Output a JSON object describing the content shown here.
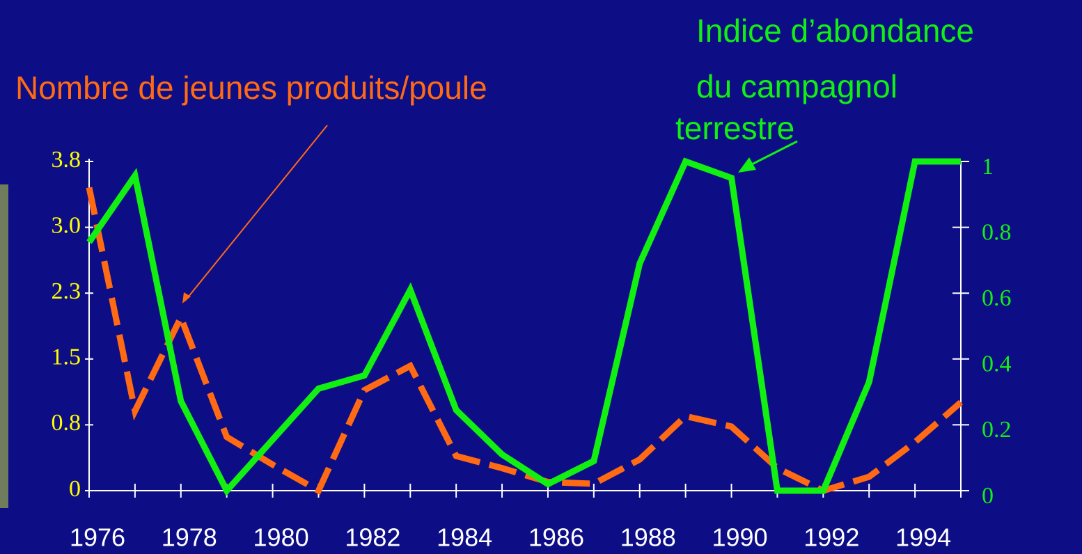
{
  "chart_data": {
    "type": "line",
    "annotations": [
      "Nombre de jeunes produits/poule",
      "Indice d’abondance",
      "du campagnol",
      "terrestre"
    ],
    "categories": [
      "1976",
      null,
      "1978",
      null,
      "1980",
      null,
      "1982",
      null,
      "1984",
      null,
      "1986",
      null,
      "1988",
      null,
      "1990",
      null,
      "1992",
      null,
      "1994",
      null
    ],
    "series": [
      {
        "color": "#ff6a13",
        "dashed": true,
        "axis": "y",
        "values": [
          3.5,
          0.92,
          2.0,
          0.62,
          0.3,
          0,
          1.16,
          1.44,
          0.4,
          0.26,
          0.1,
          0.08,
          0.36,
          0.86,
          0.74,
          0.26,
          0,
          0.16,
          0.56,
          1.02
        ]
      },
      {
        "color": "#12f012",
        "dashed": false,
        "axis": "y2",
        "values": [
          0.755,
          0.957,
          0.272,
          0,
          0.155,
          0.31,
          0.35,
          0.61,
          0.245,
          0.11,
          0.02,
          0.09,
          0.69,
          1.0,
          0.95,
          0,
          0,
          0.33,
          1.0,
          1.0
        ]
      }
    ],
    "ylim": [
      0,
      3.8
    ],
    "yticks": [
      0,
      {
        "value": 0.76,
        "label": "0.8"
      },
      {
        "value": 1.52,
        "label": "1.5"
      },
      {
        "value": 2.28,
        "label": "2.3"
      },
      {
        "value": 3.04,
        "label": "3.0"
      },
      3.8
    ],
    "y2lim": [
      0,
      1
    ],
    "y2ticks": [
      0,
      0.2,
      0.4,
      0.6,
      0.8,
      1
    ]
  }
}
